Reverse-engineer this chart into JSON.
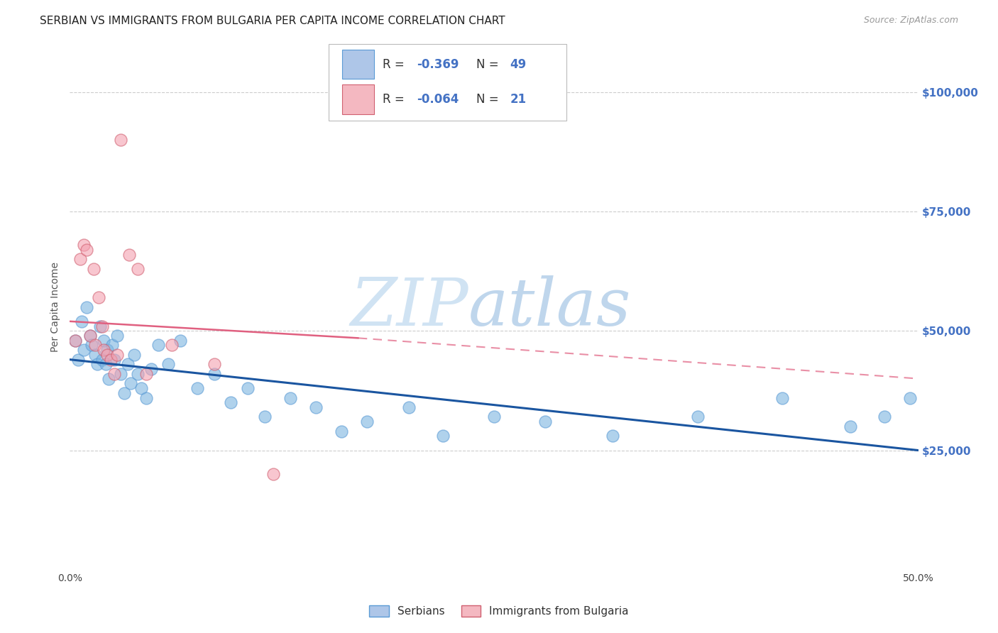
{
  "title": "SERBIAN VS IMMIGRANTS FROM BULGARIA PER CAPITA INCOME CORRELATION CHART",
  "source": "Source: ZipAtlas.com",
  "ylabel": "Per Capita Income",
  "xlim": [
    0.0,
    0.5
  ],
  "ylim": [
    0,
    110000
  ],
  "ytick_labels": [
    "$25,000",
    "$50,000",
    "$75,000",
    "$100,000"
  ],
  "ytick_values": [
    25000,
    50000,
    75000,
    100000
  ],
  "xtick_values": [
    0.0,
    0.05,
    0.1,
    0.15,
    0.2,
    0.25,
    0.3,
    0.35,
    0.4,
    0.45,
    0.5
  ],
  "serbians_x": [
    0.003,
    0.005,
    0.007,
    0.008,
    0.01,
    0.012,
    0.013,
    0.015,
    0.016,
    0.018,
    0.019,
    0.02,
    0.021,
    0.022,
    0.023,
    0.025,
    0.026,
    0.028,
    0.03,
    0.032,
    0.034,
    0.036,
    0.038,
    0.04,
    0.042,
    0.045,
    0.048,
    0.052,
    0.058,
    0.065,
    0.075,
    0.085,
    0.095,
    0.105,
    0.115,
    0.13,
    0.145,
    0.16,
    0.175,
    0.2,
    0.22,
    0.25,
    0.28,
    0.32,
    0.37,
    0.42,
    0.46,
    0.48,
    0.495
  ],
  "serbians_y": [
    48000,
    44000,
    52000,
    46000,
    55000,
    49000,
    47000,
    45000,
    43000,
    51000,
    44000,
    48000,
    43000,
    46000,
    40000,
    47000,
    44000,
    49000,
    41000,
    37000,
    43000,
    39000,
    45000,
    41000,
    38000,
    36000,
    42000,
    47000,
    43000,
    48000,
    38000,
    41000,
    35000,
    38000,
    32000,
    36000,
    34000,
    29000,
    31000,
    34000,
    28000,
    32000,
    31000,
    28000,
    32000,
    36000,
    30000,
    32000,
    36000
  ],
  "bulgaria_x": [
    0.003,
    0.006,
    0.008,
    0.01,
    0.012,
    0.014,
    0.015,
    0.017,
    0.019,
    0.02,
    0.022,
    0.024,
    0.026,
    0.028,
    0.03,
    0.035,
    0.04,
    0.045,
    0.06,
    0.085,
    0.12
  ],
  "bulgaria_y": [
    48000,
    65000,
    68000,
    67000,
    49000,
    63000,
    47000,
    57000,
    51000,
    46000,
    45000,
    44000,
    41000,
    45000,
    90000,
    66000,
    63000,
    41000,
    47000,
    43000,
    20000
  ],
  "serbian_line_x": [
    0.0,
    0.5
  ],
  "serbian_line_y": [
    44000,
    25000
  ],
  "bulgaria_line_x": [
    0.0,
    0.5
  ],
  "bulgaria_line_y": [
    52000,
    40000
  ],
  "dot_color_serbian": "#7cb4e0",
  "dot_color_bulgaria": "#f4a0b0",
  "line_color_serbian": "#1a55a0",
  "line_color_bulgaria": "#e06080",
  "dot_edge_serbian": "#5b9bd5",
  "dot_edge_bulgaria": "#d06070",
  "watermark_zip": "ZIP",
  "watermark_atlas": "atlas",
  "title_fontsize": 11,
  "axis_label_fontsize": 10,
  "tick_fontsize": 10,
  "background_color": "#ffffff",
  "grid_color": "#cccccc",
  "right_ytick_color": "#4472c4",
  "legend_r1": "-0.369",
  "legend_n1": "49",
  "legend_r2": "-0.064",
  "legend_n2": "21",
  "legend_color_blue": "#aec6e8",
  "legend_color_pink": "#f4b8c1",
  "legend_num_color": "#4472c4"
}
